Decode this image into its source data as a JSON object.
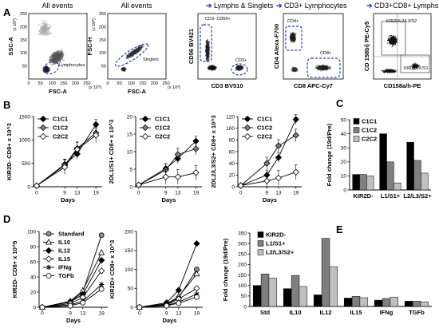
{
  "panel_labels": [
    "A",
    "B",
    "C",
    "D",
    "E"
  ],
  "flow": {
    "titles": [
      "All events",
      "All events",
      "Lymphs & Singlets",
      "CD3+ Lymphocytes",
      "CD3+CD8+ Lymphs"
    ],
    "arrow": "->",
    "plots": [
      {
        "xlabel": "FSC-A",
        "ylabel": "SSC-A",
        "xunit": "(x 10³)",
        "yunit": "(x 10³)",
        "gates": [
          "Lymphocytes"
        ]
      },
      {
        "xlabel": "FSC-A",
        "ylabel": "FSC-H",
        "xunit": "(x 10³)",
        "yunit": "(x 10³)",
        "gates": [
          "Singlets"
        ]
      },
      {
        "xlabel": "CD3 BV510",
        "ylabel": "CD56 BV421",
        "gates": [
          "CD3- CD56+",
          "CD3+"
        ]
      },
      {
        "xlabel": "CD8 APC-Cy7",
        "ylabel": "CD4 Alexa-F700",
        "gates": [
          "CD4+",
          "CD8+"
        ]
      },
      {
        "xlabel": "CD158a/h-PE",
        "ylabel": "CD 158b/j PE-Cy5",
        "gates": [
          "KIR2DL2/L3/S2",
          "KIR2DL1/S1"
        ]
      }
    ],
    "xticks": [
      "0",
      "50",
      "100",
      "150",
      "200",
      "250"
    ],
    "yticks": [
      "0",
      "50",
      "100",
      "150",
      "200",
      "250"
    ]
  },
  "chart_data": [
    {
      "type": "line",
      "panel": "B",
      "x": [
        0,
        9,
        13,
        19
      ],
      "xlabel": "Days",
      "ylabel": "KIR2D- CD8+ x 10^3",
      "ylim": [
        0,
        1500
      ],
      "yticks": [
        0,
        500,
        1000,
        1500
      ],
      "legend": "top-left",
      "series": [
        {
          "name": "C1C1",
          "values": [
            20,
            480,
            700,
            1330
          ]
        },
        {
          "name": "C1C2",
          "values": [
            20,
            460,
            820,
            1150
          ]
        },
        {
          "name": "C2C2",
          "values": [
            20,
            420,
            800,
            1100
          ]
        }
      ]
    },
    {
      "type": "line",
      "panel": "B",
      "x": [
        0,
        9,
        13,
        19
      ],
      "xlabel": "Days",
      "ylabel": "2DL1/S1+ CD8+ x 10^3",
      "ylim": [
        0,
        20
      ],
      "yticks": [
        0,
        5,
        10,
        15,
        20
      ],
      "legend": "top-left",
      "series": [
        {
          "name": "C1C1",
          "values": [
            0.5,
            5.2,
            8.0,
            13.0
          ]
        },
        {
          "name": "C1C2",
          "values": [
            0.5,
            4.8,
            9.2,
            10.8
          ]
        },
        {
          "name": "C2C2",
          "values": [
            0.5,
            2.8,
            2.8,
            4.0
          ]
        }
      ]
    },
    {
      "type": "line",
      "panel": "B",
      "x": [
        0,
        9,
        13,
        19
      ],
      "xlabel": "Days",
      "ylabel": "2DL2/L3/S2+ CD8+ x 10^3",
      "ylim": [
        0,
        120
      ],
      "yticks": [
        0,
        20,
        40,
        60,
        80,
        100,
        120
      ],
      "legend": "top-left",
      "series": [
        {
          "name": "C1C1",
          "values": [
            2,
            20,
            50,
            115
          ]
        },
        {
          "name": "C1C2",
          "values": [
            2,
            40,
            70,
            88
          ]
        },
        {
          "name": "C2C2",
          "values": [
            2,
            10,
            15,
            25
          ]
        }
      ]
    },
    {
      "type": "bar",
      "panel": "C",
      "categories": [
        "KIR2D-",
        "L1/S1+",
        "L2/L3/S2+"
      ],
      "ylabel": "Fold change (19d/Pre)",
      "ylim": [
        0,
        50
      ],
      "yticks": [
        0,
        10,
        20,
        30,
        40,
        50
      ],
      "legend": "top-left",
      "series": [
        {
          "name": "C1C1",
          "color": "#000000",
          "values": [
            11,
            40,
            34
          ]
        },
        {
          "name": "C1C2",
          "color": "#7f7f7f",
          "values": [
            11,
            20,
            21
          ]
        },
        {
          "name": "C2C2",
          "color": "#c0c0c0",
          "values": [
            10,
            5,
            12
          ]
        }
      ]
    },
    {
      "type": "line",
      "panel": "D",
      "x": [
        0,
        9,
        13,
        19
      ],
      "xlabel": "Days",
      "ylabel": "KIR2D- CD8+ x 10^5",
      "ylim": [
        0,
        100
      ],
      "yticks": [
        0,
        20,
        40,
        60,
        80,
        100
      ],
      "legend": "top-left",
      "series": [
        {
          "name": "Standard",
          "values": [
            0,
            7,
            20,
            95
          ]
        },
        {
          "name": "IL10",
          "values": [
            0,
            8,
            22,
            72
          ]
        },
        {
          "name": "IL12",
          "values": [
            0,
            7,
            17,
            62
          ]
        },
        {
          "name": "IL15",
          "values": [
            0,
            5,
            13,
            48
          ]
        },
        {
          "name": "IFNg",
          "values": [
            0,
            3,
            8,
            30
          ]
        },
        {
          "name": "TGFb",
          "values": [
            0,
            2,
            6,
            24
          ]
        }
      ]
    },
    {
      "type": "line",
      "panel": "D",
      "x": [
        0,
        9,
        13,
        19
      ],
      "xlabel": "Days",
      "ylabel": "KIR2D+ CD8+ x 10^3",
      "ylim": [
        0,
        200
      ],
      "yticks": [
        0,
        50,
        100,
        150,
        200
      ],
      "legend": "none",
      "series": [
        {
          "name": "Standard",
          "values": [
            0,
            8,
            25,
            100
          ]
        },
        {
          "name": "IL10",
          "values": [
            0,
            9,
            28,
            88
          ]
        },
        {
          "name": "IL12",
          "values": [
            0,
            12,
            45,
            168
          ]
        },
        {
          "name": "IL15",
          "values": [
            0,
            6,
            22,
            50
          ]
        },
        {
          "name": "IFNg",
          "values": [
            0,
            5,
            14,
            35
          ]
        },
        {
          "name": "TGFb",
          "values": [
            0,
            4,
            11,
            27
          ]
        }
      ]
    },
    {
      "type": "bar",
      "panel": "E",
      "categories": [
        "Std",
        "IL10",
        "IL12",
        "IL15",
        "IFNg",
        "TGFb"
      ],
      "ylabel": "Fold change (19d/Pre)",
      "ylim": [
        0,
        350
      ],
      "yticks": [
        0,
        50,
        100,
        150,
        200,
        250,
        300,
        350
      ],
      "legend": "top-left",
      "series": [
        {
          "name": "KIR2D-",
          "color": "#000000",
          "values": [
            100,
            85,
            55,
            40,
            30,
            25
          ]
        },
        {
          "name": "L1/S1+",
          "color": "#7f7f7f",
          "values": [
            155,
            148,
            325,
            48,
            38,
            25
          ]
        },
        {
          "name": "L2/L3/S2+",
          "color": "#c0c0c0",
          "values": [
            135,
            95,
            190,
            42,
            45,
            22
          ]
        }
      ]
    }
  ]
}
